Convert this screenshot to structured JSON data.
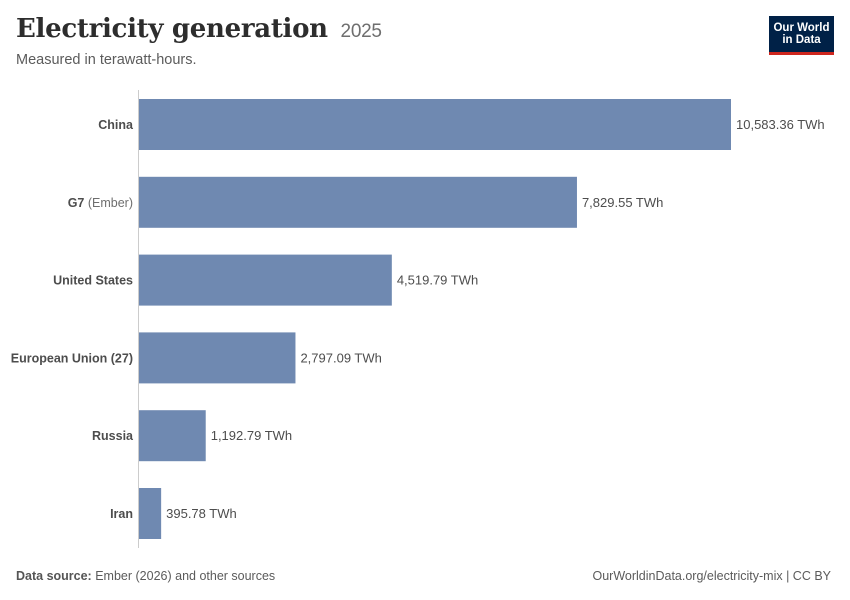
{
  "header": {
    "title": "Electricity generation",
    "year": "2025",
    "subtitle": "Measured in terawatt-hours."
  },
  "logo": {
    "line1": "Our World",
    "line2": "in Data",
    "bg_color": "#002147",
    "accent_color": "#ce261e"
  },
  "footer": {
    "source_label": "Data source:",
    "source_text": "Ember (2026) and other sources",
    "link_text": "OurWorldinData.org/electricity-mix | CC BY"
  },
  "chart_data": {
    "type": "bar",
    "orientation": "horizontal",
    "bar_color": "#6f89b1",
    "unit": "TWh",
    "grid": false,
    "categories": [
      {
        "name": "China",
        "qualifier": ""
      },
      {
        "name": "G7",
        "qualifier": "(Ember)"
      },
      {
        "name": "United States",
        "qualifier": ""
      },
      {
        "name": "European Union (27)",
        "qualifier": ""
      },
      {
        "name": "Russia",
        "qualifier": ""
      },
      {
        "name": "Iran",
        "qualifier": ""
      }
    ],
    "values": [
      10583.36,
      7829.55,
      4519.79,
      2797.09,
      1192.79,
      395.78
    ],
    "value_labels": [
      "10,583.36 TWh",
      "7,829.55 TWh",
      "4,519.79 TWh",
      "2,797.09 TWh",
      "1,192.79 TWh",
      "395.78 TWh"
    ]
  }
}
